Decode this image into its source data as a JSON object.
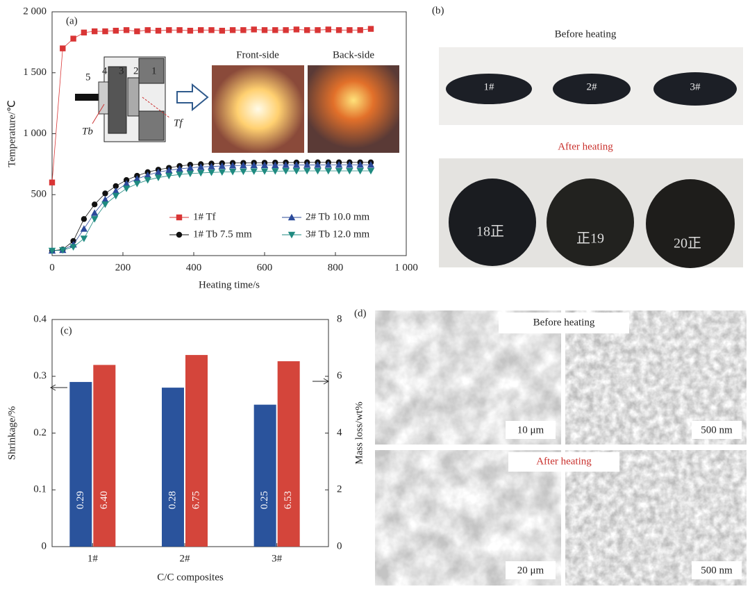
{
  "chart_data": [
    {
      "type": "line",
      "panel_label": "(a)",
      "x_label": "Heating time/s",
      "y_label": "Temperature/℃",
      "x": [
        0,
        30,
        60,
        90,
        120,
        150,
        180,
        210,
        240,
        270,
        300,
        330,
        360,
        390,
        420,
        450,
        480,
        510,
        540,
        570,
        600,
        630,
        660,
        690,
        720,
        750,
        780,
        810,
        840,
        870,
        900
      ],
      "series": [
        {
          "name": "1# Tf",
          "color": "#d93535",
          "marker": "square",
          "values": [
            600,
            1700,
            1780,
            1830,
            1840,
            1840,
            1845,
            1850,
            1840,
            1850,
            1845,
            1850,
            1850,
            1845,
            1850,
            1850,
            1845,
            1850,
            1850,
            1855,
            1850,
            1850,
            1850,
            1855,
            1850,
            1850,
            1855,
            1850,
            1850,
            1850,
            1860
          ]
        },
        {
          "name": "1# Tb 7.5 mm",
          "color": "#111111",
          "marker": "circle",
          "values": [
            40,
            50,
            120,
            300,
            420,
            510,
            570,
            620,
            655,
            685,
            705,
            720,
            735,
            745,
            750,
            755,
            758,
            760,
            760,
            762,
            762,
            763,
            764,
            764,
            765,
            765,
            765,
            765,
            765,
            765,
            765
          ]
        },
        {
          "name": "2# Tb 10.0 mm",
          "color": "#2b4a9a",
          "marker": "triangle-up",
          "values": [
            40,
            45,
            90,
            220,
            350,
            460,
            530,
            590,
            630,
            660,
            685,
            700,
            712,
            720,
            727,
            731,
            735,
            738,
            740,
            741,
            742,
            742,
            743,
            743,
            744,
            744,
            745,
            745,
            745,
            745,
            745
          ]
        },
        {
          "name": "3# Tb 12.0 mm",
          "color": "#1f8a80",
          "marker": "triangle-down",
          "values": [
            40,
            45,
            70,
            140,
            300,
            420,
            490,
            550,
            590,
            620,
            640,
            655,
            665,
            673,
            678,
            682,
            685,
            688,
            690,
            691,
            692,
            693,
            694,
            694,
            695,
            695,
            695,
            695,
            695,
            695,
            695
          ]
        }
      ],
      "xlim": [
        0,
        1000
      ],
      "xticks": [
        0,
        200,
        400,
        600,
        800,
        {
          "value": 1000,
          "label": "1 000"
        }
      ],
      "ylim": [
        0,
        2000
      ],
      "yticks": [
        500,
        {
          "value": 1000,
          "label": "1 000"
        },
        {
          "value": 1500,
          "label": "1 500"
        },
        {
          "value": 2000,
          "label": "2 000"
        }
      ],
      "legend": "lower right",
      "inset": {
        "parts": [
          "5",
          "4",
          "3",
          "2",
          "1"
        ],
        "tb": "Tb",
        "tf": "Tf",
        "front": "Front-side",
        "back": "Back-side"
      }
    },
    {
      "type": "bar",
      "panel_label": "(c)",
      "x_label": "C/C composites",
      "y_label": "Shrinkage/%",
      "y2_label": "Mass loss/wt%",
      "categories": [
        "1#",
        "2#",
        "3#"
      ],
      "series": [
        {
          "color": "#1f4a97",
          "values": [
            0.29,
            0.28,
            0.25
          ]
        },
        {
          "color": "#d23b30",
          "axis": "y2",
          "values": [
            6.4,
            6.75,
            6.53
          ],
          "value_labels": [
            "6.40",
            "6.75",
            "6.53"
          ]
        }
      ],
      "ylim": [
        0,
        0.4
      ],
      "yticks": [
        0,
        0.1,
        0.2,
        0.3,
        0.4
      ],
      "y2lim": [
        0,
        8
      ],
      "y2ticks": [
        0,
        2,
        4,
        6,
        8
      ]
    }
  ],
  "panel_b": {
    "label": "(b)",
    "before": "Before heating",
    "after": "After heating",
    "samples": [
      "1#",
      "2#",
      "3#"
    ],
    "marks": [
      "18正",
      "正19",
      "20正"
    ]
  },
  "panel_d": {
    "label": "(d)",
    "before": "Before heating",
    "after": "After heating",
    "scales": [
      "10 μm",
      "500 nm",
      "20 μm",
      "500 nm"
    ]
  }
}
